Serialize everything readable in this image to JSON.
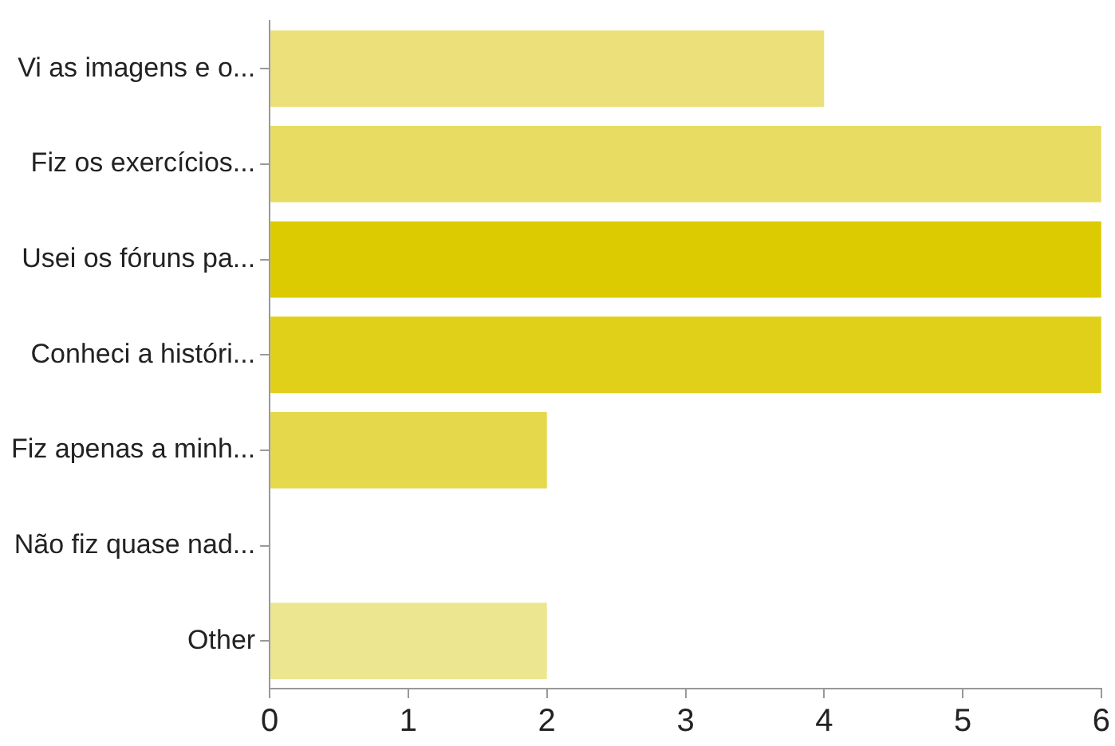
{
  "chart_data": {
    "type": "bar",
    "orientation": "horizontal",
    "categories": [
      "Vi as imagens e o...",
      "Fiz os exercícios...",
      "Usei os fóruns pa...",
      "Conheci a históri...",
      "Fiz apenas a minh...",
      "Não fiz quase nad...",
      "Other"
    ],
    "values": [
      4,
      6,
      6,
      6,
      2,
      0,
      2
    ],
    "colors": [
      "#ebe07a",
      "#e8dc62",
      "#dccb00",
      "#e0d01a",
      "#e5d84a",
      "#e8dc62",
      "#ede690"
    ],
    "xlim": [
      0,
      6
    ],
    "xticks": [
      0,
      1,
      2,
      3,
      4,
      5,
      6
    ],
    "grid": false,
    "legend": false
  }
}
